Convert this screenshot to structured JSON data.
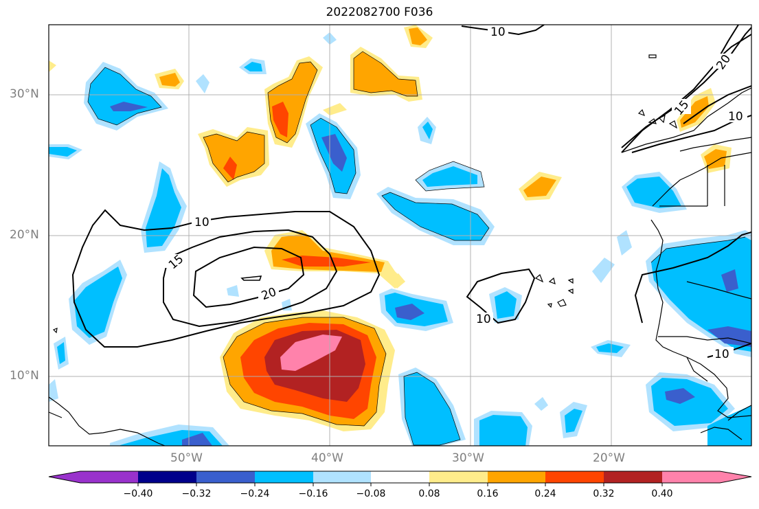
{
  "title": "2022082700 F036",
  "axes": {
    "lat_labels": [
      "30°N",
      "20°N",
      "10°N"
    ],
    "lon_labels": [
      "50°W",
      "40°W",
      "30°W",
      "20°W"
    ]
  },
  "contour_labels": [
    "10",
    "15",
    "20",
    "10",
    "10",
    "20",
    "15",
    "10",
    "10"
  ],
  "colorbar": {
    "ticks": [
      "−0.40",
      "−0.32",
      "−0.24",
      "−0.16",
      "−0.08",
      "0.08",
      "0.16",
      "0.24",
      "0.32",
      "0.40"
    ],
    "colors": [
      "#9932cc",
      "#00008b",
      "#3a5fcd",
      "#00bfff",
      "#b0e2ff",
      "#ffffff",
      "#ffec8b",
      "#ffa500",
      "#ff4500",
      "#b22222",
      "#ff82ab"
    ]
  },
  "colors": {
    "neg_dark": "#3a5fcd",
    "neg_mid": "#00bfff",
    "neg_light": "#b0e2ff",
    "pos_light": "#ffec8b",
    "pos_mid": "#ffa500",
    "pos_strong": "#ff4500",
    "pos_dark": "#b22222",
    "pos_max": "#ff82ab"
  }
}
